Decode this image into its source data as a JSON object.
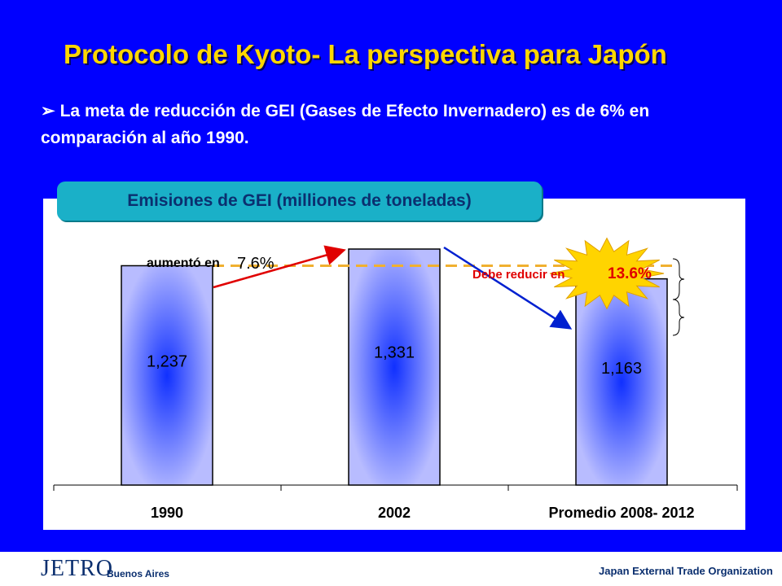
{
  "slide": {
    "title": "Protocolo de Kyoto- La perspectiva para Japón",
    "bullet": "La meta de reducción de GEI (Gases de Efecto Invernadero)  es de 6% en comparación al año 1990.",
    "bullet_icon": "arrow-bullet-icon"
  },
  "chart_data": {
    "type": "bar",
    "title": "Emisiones de GEI (milliones de toneladas)",
    "categories": [
      "1990",
      "2002",
      "Promedio 2008- 2012"
    ],
    "values": [
      1237,
      1331,
      1163
    ],
    "value_labels": [
      "1,237",
      "1,331",
      "1,163"
    ],
    "ylim": [
      0,
      1331
    ],
    "grid": false,
    "annotations": {
      "increase_label": "aumentó en",
      "increase_value": "7.6%",
      "reduce_label": "Debe reducir en",
      "reduce_value": "13.6%"
    },
    "colors": {
      "bar_edge": "#000000",
      "bar_center": "#1030ff",
      "bar_outer": "#b8bcff",
      "increase_arrow": "#e00000",
      "decrease_arrow": "#0020d0",
      "reference_line": "#f0b030",
      "starburst": "#ffd400"
    }
  },
  "footer": {
    "logo": "JETRO",
    "logo_sub": "Buenos Aires",
    "organization": "Japan External Trade Organization"
  }
}
